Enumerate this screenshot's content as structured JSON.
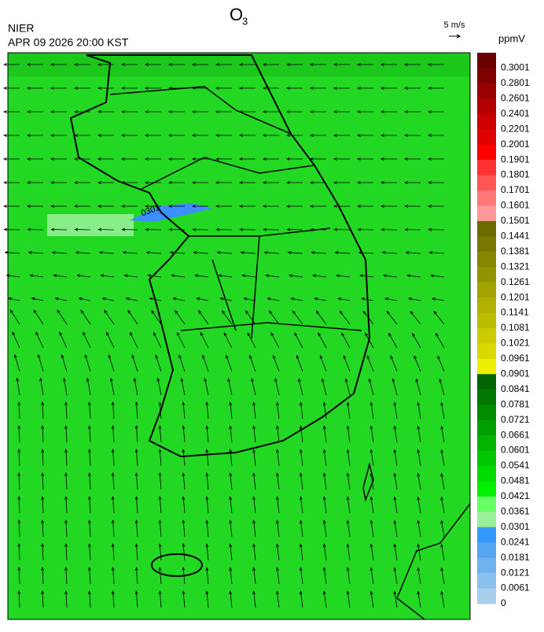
{
  "header": {
    "title": "O",
    "title_subscript": "3",
    "organization": "NIER",
    "datetime": "APR 09 2026 20:00 KST"
  },
  "wind_scale": {
    "label": "5 m/s"
  },
  "map": {
    "contour_label": "0301"
  },
  "colorbar": {
    "unit": "ppmV",
    "labels": [
      "0.3001",
      "0.2801",
      "0.2601",
      "0.2401",
      "0.2201",
      "0.2001",
      "0.1901",
      "0.1801",
      "0.1701",
      "0.1601",
      "0.1501",
      "0.1441",
      "0.1381",
      "0.1321",
      "0.1261",
      "0.1201",
      "0.1141",
      "0.1081",
      "0.1021",
      "0.0961",
      "0.0901",
      "0.0841",
      "0.0781",
      "0.0721",
      "0.0661",
      "0.0601",
      "0.0541",
      "0.0481",
      "0.0421",
      "0.0361",
      "0.0301",
      "0.0241",
      "0.0181",
      "0.0121",
      "0.0061",
      "0"
    ],
    "colors": [
      "#6b0000",
      "#800000",
      "#990000",
      "#b30000",
      "#cc0000",
      "#e00000",
      "#ff0000",
      "#ff3333",
      "#ff5555",
      "#ff7777",
      "#ff9999",
      "#6b6b00",
      "#787800",
      "#868600",
      "#949400",
      "#a2a200",
      "#b0b000",
      "#bdbd00",
      "#cbcb00",
      "#d9d900",
      "#eeee00",
      "#006400",
      "#007800",
      "#008c00",
      "#00a000",
      "#00b400",
      "#00c800",
      "#00dc00",
      "#00f000",
      "#66ff66",
      "#99f099",
      "#3399ff",
      "#55a5f0",
      "#70b2ee",
      "#8cc0ec",
      "#a8d0ec"
    ]
  }
}
